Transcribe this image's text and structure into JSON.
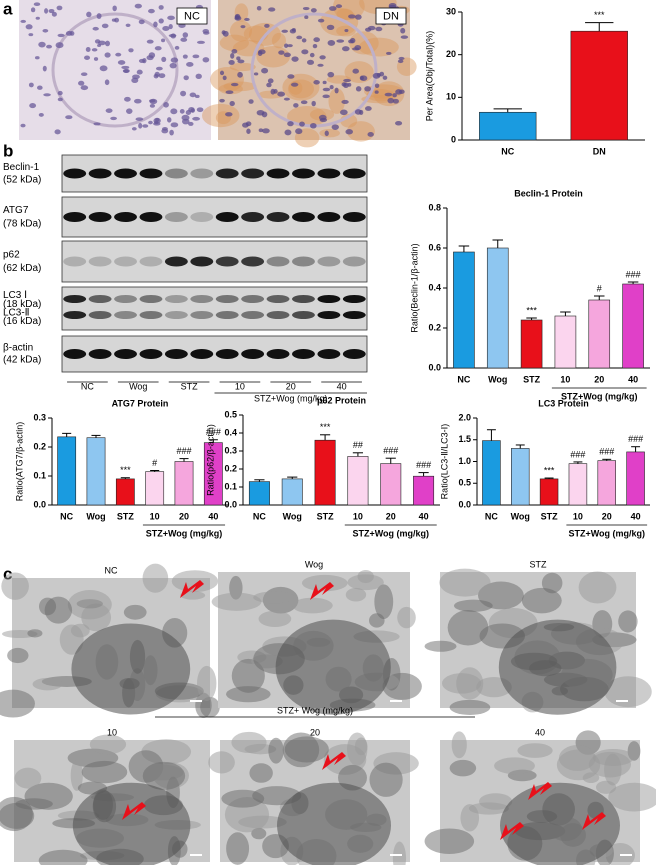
{
  "figure": {
    "panel_labels": [
      "a",
      "b",
      "c"
    ],
    "histology_labels": [
      "NC",
      "DN"
    ],
    "blot_labels": [
      "Beclin-1",
      "(52 kDa)",
      "ATG7",
      "(78 kDa)",
      "p62",
      "(62 kDa)",
      "LC3 Ⅰ",
      "(18 kDa)",
      "LC3-Ⅱ",
      "(16 kDa)",
      "β-actin",
      "(42 kDa)"
    ],
    "blot_lanes": [
      "NC",
      "Wog",
      "STZ",
      "10",
      "20",
      "40"
    ],
    "blot_group": "STZ+Wog (mg/kg)",
    "tem_labels": [
      "NC",
      "Wog",
      "STZ",
      "10",
      "20",
      "40"
    ],
    "tem_group": "STZ+ Wog (mg/kg)"
  },
  "chart_data": [
    {
      "type": "bar",
      "y_label": "Per Area(Obj/Total)(%)",
      "categories": [
        "NC",
        "DN"
      ],
      "values": [
        6.5,
        25.5
      ],
      "errors": [
        0.8,
        2.0
      ],
      "colors": [
        "#1a9be0",
        "#e8101a"
      ],
      "annotations": [
        null,
        "***"
      ],
      "ylim": [
        0,
        30
      ],
      "yticks": [
        0,
        10,
        20,
        30
      ]
    },
    {
      "type": "bar",
      "title": "Beclin-1 Protein",
      "y_label": "Ratio(Beclin-1/β-actin)",
      "categories": [
        "NC",
        "Wog",
        "STZ",
        "10",
        "20",
        "40"
      ],
      "values": [
        0.58,
        0.6,
        0.24,
        0.26,
        0.34,
        0.42
      ],
      "errors": [
        0.03,
        0.04,
        0.01,
        0.02,
        0.02,
        0.01
      ],
      "colors": [
        "#1a9be0",
        "#8ec6f0",
        "#e8101a",
        "#fbd5ee",
        "#f5a6dd",
        "#e040c8"
      ],
      "annotations": [
        null,
        null,
        "***",
        null,
        "#",
        "###"
      ],
      "x_group_label": "STZ+Wog (mg/kg)",
      "ylim": [
        0,
        0.8
      ],
      "yticks": [
        {
          "value": 0,
          "label": "0.0"
        },
        0.2,
        0.4,
        0.6,
        0.8
      ]
    },
    {
      "type": "bar",
      "title": "ATG7 Protein",
      "y_label": "Ratio(ATG7/β-actin)",
      "categories": [
        "NC",
        "Wog",
        "STZ",
        "10",
        "20",
        "40"
      ],
      "values": [
        0.235,
        0.232,
        0.09,
        0.115,
        0.15,
        0.215
      ],
      "errors": [
        0.012,
        0.008,
        0.004,
        0.004,
        0.01,
        0.01
      ],
      "colors": [
        "#1a9be0",
        "#8ec6f0",
        "#e8101a",
        "#fbd5ee",
        "#f5a6dd",
        "#e040c8"
      ],
      "annotations": [
        null,
        null,
        "***",
        "#",
        "###",
        "###"
      ],
      "x_group_label": "STZ+Wog (mg/kg)",
      "ylim": [
        0,
        0.3
      ],
      "yticks": [
        {
          "value": 0,
          "label": "0.0"
        },
        0.1,
        0.2,
        0.3
      ]
    },
    {
      "type": "bar",
      "title": "p62 Protein",
      "y_label": "Ratio(p62/β-actin)",
      "categories": [
        "NC",
        "Wog",
        "STZ",
        "10",
        "20",
        "40"
      ],
      "values": [
        0.13,
        0.145,
        0.36,
        0.27,
        0.23,
        0.16
      ],
      "errors": [
        0.01,
        0.01,
        0.03,
        0.02,
        0.03,
        0.02
      ],
      "colors": [
        "#1a9be0",
        "#8ec6f0",
        "#e8101a",
        "#fbd5ee",
        "#f5a6dd",
        "#e040c8"
      ],
      "annotations": [
        null,
        null,
        "***",
        "##",
        "###",
        "###"
      ],
      "x_group_label": "STZ+Wog (mg/kg)",
      "ylim": [
        0,
        0.5
      ],
      "yticks": [
        {
          "value": 0,
          "label": "0.0"
        },
        0.1,
        0.2,
        0.3,
        0.4,
        0.5
      ]
    },
    {
      "type": "bar",
      "title": "LC3 Protein",
      "y_label": "Ratio(LC3-Ⅱ/LC3-Ⅰ)",
      "categories": [
        "NC",
        "Wog",
        "STZ",
        "10",
        "20",
        "40"
      ],
      "values": [
        1.48,
        1.3,
        0.6,
        0.95,
        1.02,
        1.22
      ],
      "errors": [
        0.25,
        0.08,
        0.02,
        0.04,
        0.03,
        0.12
      ],
      "colors": [
        "#1a9be0",
        "#8ec6f0",
        "#e8101a",
        "#fbd5ee",
        "#f5a6dd",
        "#e040c8"
      ],
      "annotations": [
        null,
        null,
        "***",
        "###",
        "###",
        "###"
      ],
      "x_group_label": "STZ+Wog (mg/kg)",
      "ylim": [
        0,
        2.0
      ],
      "yticks": [
        {
          "value": 0,
          "label": "0.0"
        },
        0.5,
        {
          "value": 1,
          "label": "1.0"
        },
        1.5,
        {
          "value": 2,
          "label": "2.0"
        }
      ]
    }
  ]
}
